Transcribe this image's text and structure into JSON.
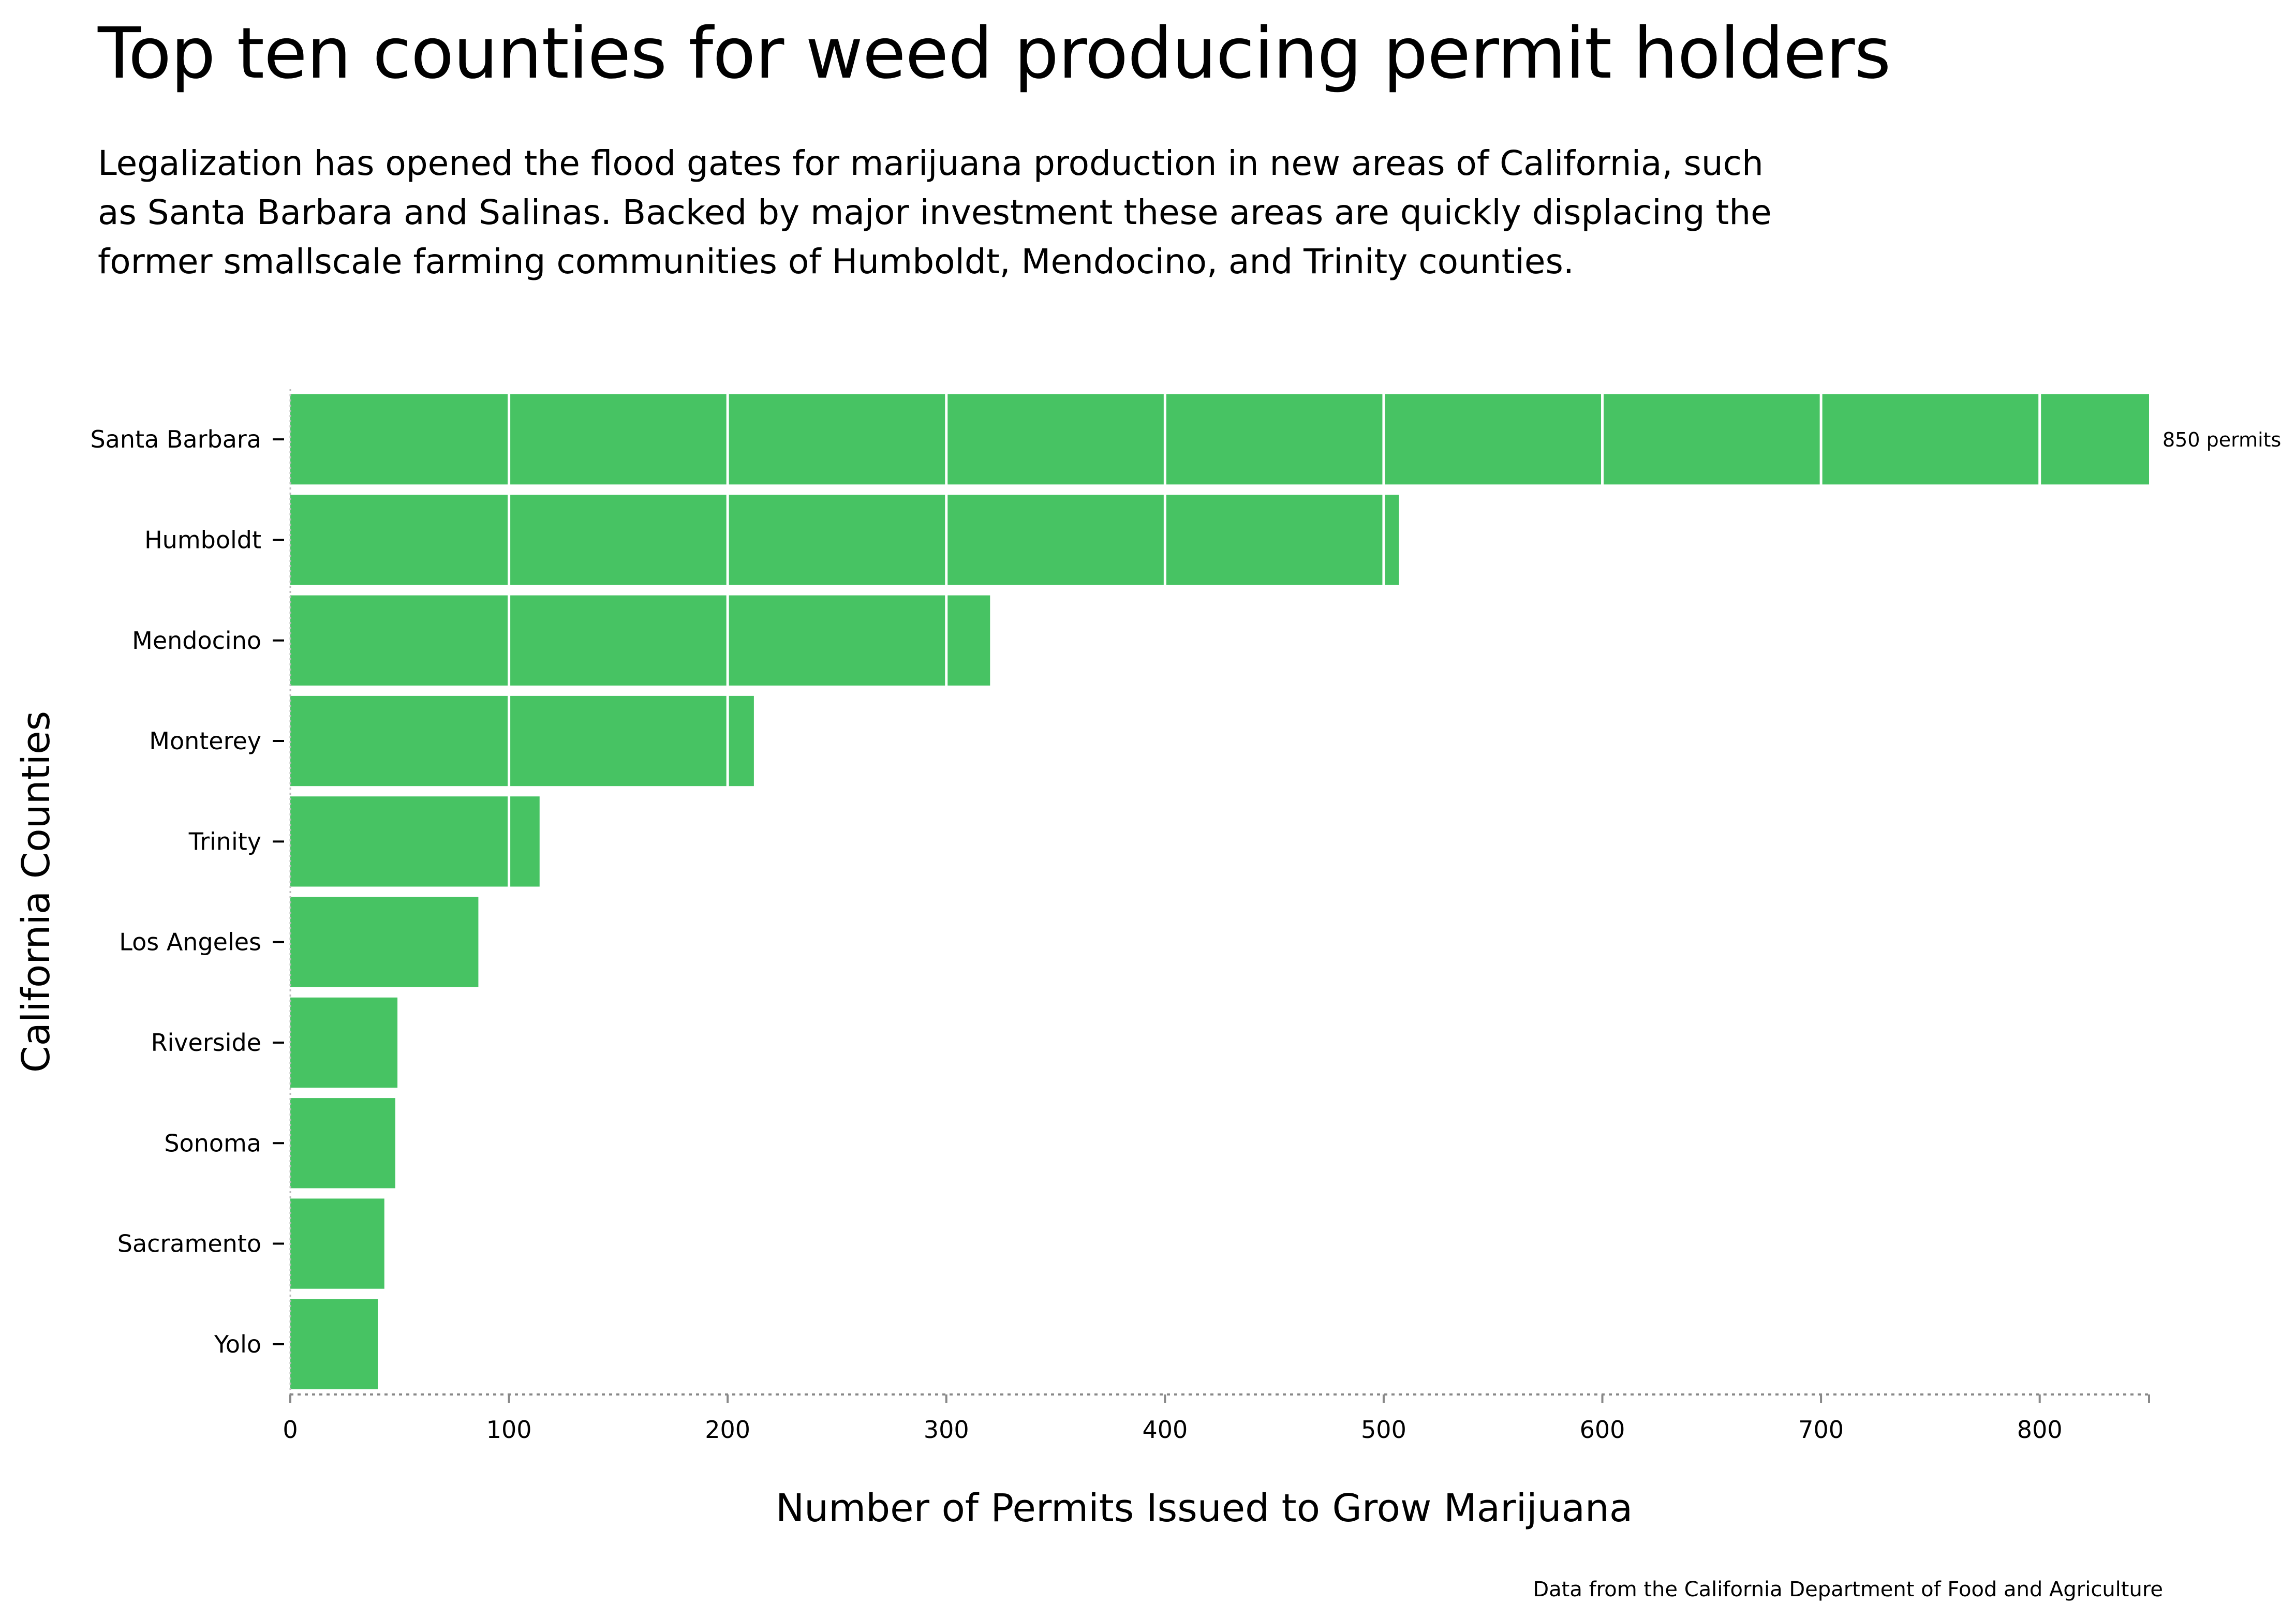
{
  "header": {
    "title": "Top ten counties for weed producing permit holders",
    "subtitle": "Legalization has opened the flood gates for marijuana production in new areas of California, such as Santa Barbara and Salinas. Backed by major investment these areas are quickly displacing the former smallscale farming communities of Humboldt, Mendocino, and Trinity counties."
  },
  "chart_data": {
    "type": "bar",
    "orientation": "horizontal",
    "categories": [
      "Santa Barbara",
      "Humboldt",
      "Mendocino",
      "Monterey",
      "Trinity",
      "Los Angeles",
      "Riverside",
      "Sonoma",
      "Sacramento",
      "Yolo"
    ],
    "values": [
      850,
      507,
      320,
      212,
      114,
      86,
      49,
      48,
      43,
      40
    ],
    "xlabel": "Number of Permits Issued to Grow Marijuana",
    "ylabel": "California Counties",
    "xlim": [
      0,
      850
    ],
    "xticks": [
      "0",
      "100",
      "200",
      "300",
      "400",
      "500",
      "600",
      "700",
      "800"
    ],
    "annotation": "850 permits",
    "bar_color": "#47c363",
    "grid": "vertical white lines at 100-unit intervals inside bars"
  },
  "footer": {
    "source": "Data from the California Department of Food and Agriculture"
  }
}
